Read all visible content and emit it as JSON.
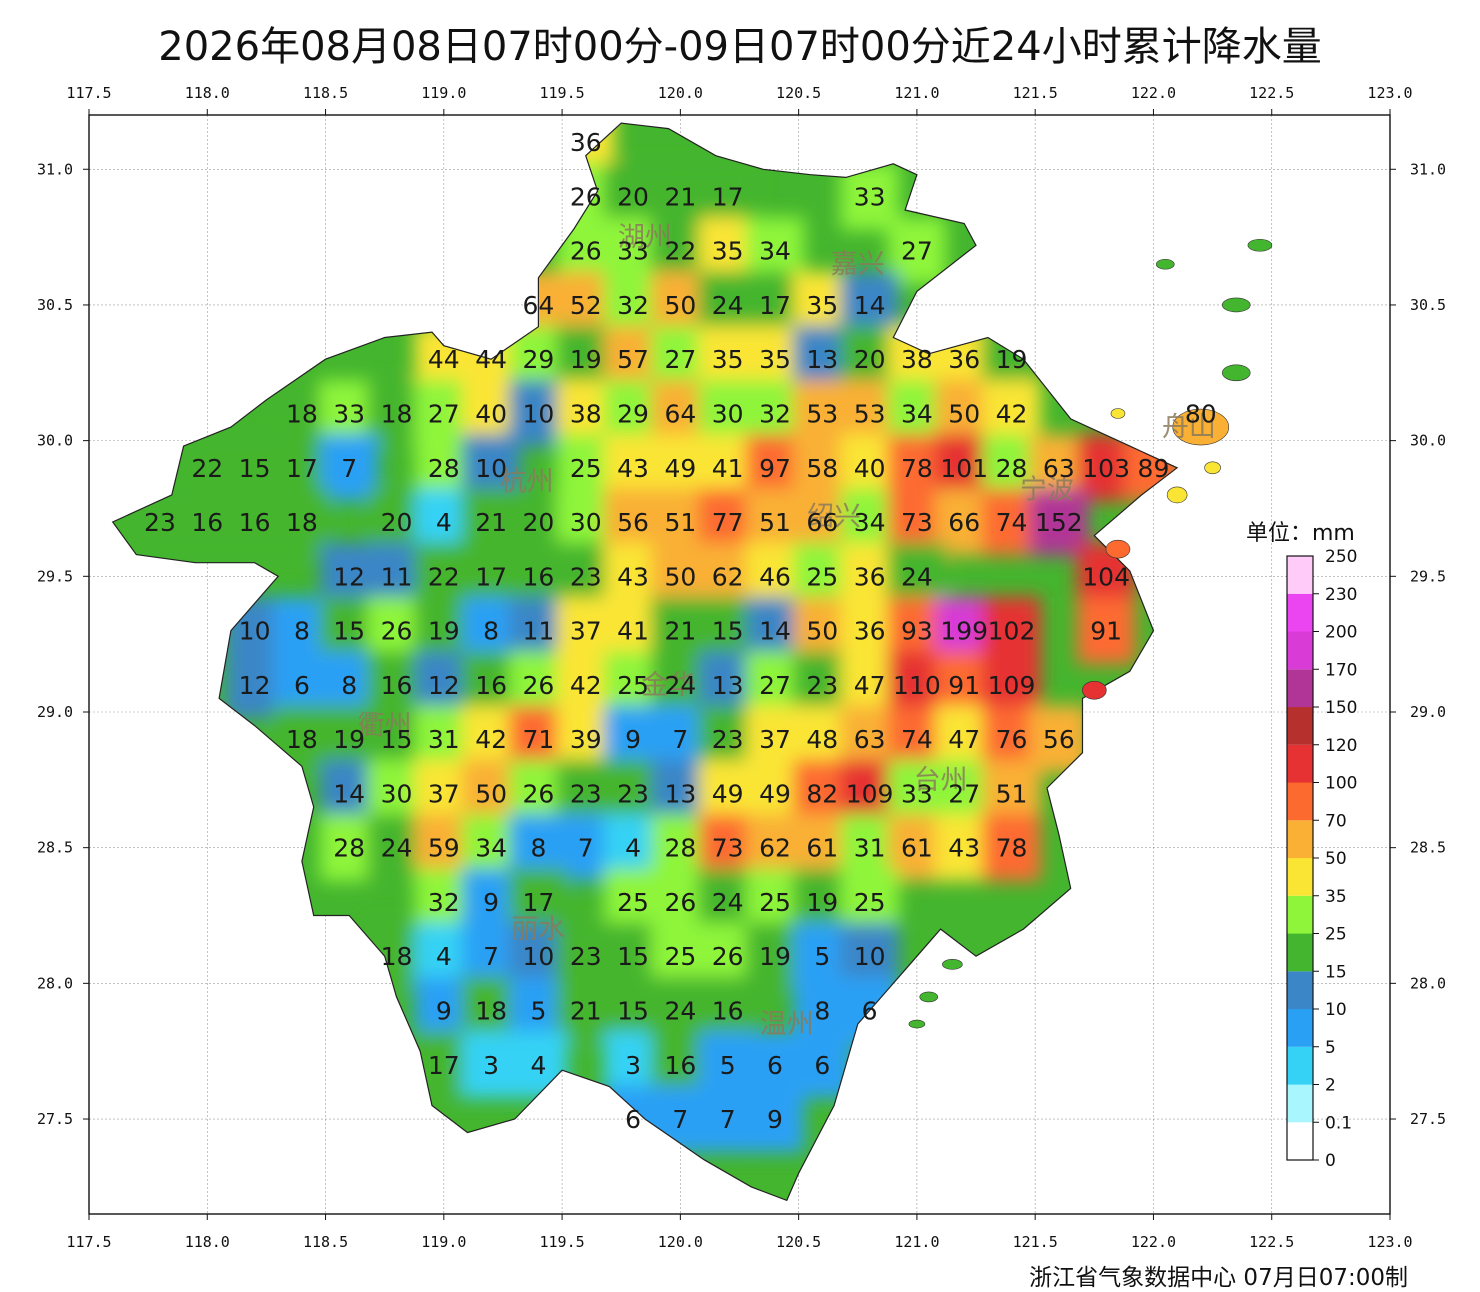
{
  "title": "2026年08月08日07时00分-09日07时00分近24小时累计降水量",
  "source": "浙江省气象数据中心 07月日07:00制",
  "unit_label": "单位：mm",
  "lon_ticks": [
    "117.5",
    "118.0",
    "118.5",
    "119.0",
    "119.5",
    "120.0",
    "120.5",
    "121.0",
    "121.5",
    "122.0",
    "122.5",
    "123.0"
  ],
  "lat_ticks": [
    "31.0",
    "30.5",
    "30.0",
    "29.5",
    "29.0",
    "28.5",
    "28.0",
    "27.5"
  ],
  "extent": {
    "lon_min": 117.5,
    "lon_max": 123.0,
    "lat_min": 27.15,
    "lat_max": 31.2
  },
  "colorbar": [
    {
      "label": "0",
      "color": "#ffffff"
    },
    {
      "label": "0.1",
      "color": "#a9f6ff"
    },
    {
      "label": "2",
      "color": "#35d2f5"
    },
    {
      "label": "5",
      "color": "#2aa0f5"
    },
    {
      "label": "10",
      "color": "#3a86c6"
    },
    {
      "label": "15",
      "color": "#44b52e"
    },
    {
      "label": "25",
      "color": "#8ef53a"
    },
    {
      "label": "35",
      "color": "#fae534"
    },
    {
      "label": "50",
      "color": "#f9b034"
    },
    {
      "label": "70",
      "color": "#fd6a30"
    },
    {
      "label": "100",
      "color": "#e63232"
    },
    {
      "label": "120",
      "color": "#b6302e"
    },
    {
      "label": "150",
      "color": "#b13597"
    },
    {
      "label": "170",
      "color": "#d83bd6"
    },
    {
      "label": "200",
      "color": "#ea45f0"
    },
    {
      "label": "230",
      "color": "#ffccf9"
    }
  ],
  "colorbar_top": "250",
  "cities": [
    {
      "name": "湖州",
      "lon": 119.85,
      "lat": 30.75
    },
    {
      "name": "嘉兴",
      "lon": 120.75,
      "lat": 30.65
    },
    {
      "name": "杭州",
      "lon": 119.35,
      "lat": 29.85
    },
    {
      "name": "绍兴",
      "lon": 120.65,
      "lat": 29.72
    },
    {
      "name": "宁波",
      "lon": 121.55,
      "lat": 29.82
    },
    {
      "name": "舟山",
      "lon": 122.15,
      "lat": 30.05
    },
    {
      "name": "金华",
      "lon": 119.95,
      "lat": 29.1
    },
    {
      "name": "衢州",
      "lon": 118.75,
      "lat": 28.95
    },
    {
      "name": "台州",
      "lon": 121.1,
      "lat": 28.75
    },
    {
      "name": "丽水",
      "lon": 119.4,
      "lat": 28.2
    },
    {
      "name": "温州",
      "lon": 120.45,
      "lat": 27.85
    }
  ],
  "chart_data": {
    "type": "heatmap",
    "x_axis": "longitude",
    "y_axis": "latitude",
    "values_mm": [
      {
        "lon": 119.6,
        "lat": 31.1,
        "v": 36
      },
      {
        "lon": 119.6,
        "lat": 30.9,
        "v": 26
      },
      {
        "lon": 119.8,
        "lat": 30.9,
        "v": 20
      },
      {
        "lon": 120.0,
        "lat": 30.9,
        "v": 21
      },
      {
        "lon": 120.2,
        "lat": 30.9,
        "v": 17
      },
      {
        "lon": 120.8,
        "lat": 30.9,
        "v": 33
      },
      {
        "lon": 119.6,
        "lat": 30.7,
        "v": 26
      },
      {
        "lon": 119.8,
        "lat": 30.7,
        "v": 33
      },
      {
        "lon": 120.0,
        "lat": 30.7,
        "v": 22
      },
      {
        "lon": 120.2,
        "lat": 30.7,
        "v": 35
      },
      {
        "lon": 120.4,
        "lat": 30.7,
        "v": 34
      },
      {
        "lon": 121.0,
        "lat": 30.7,
        "v": 27
      },
      {
        "lon": 119.4,
        "lat": 30.5,
        "v": 64
      },
      {
        "lon": 119.6,
        "lat": 30.5,
        "v": 52
      },
      {
        "lon": 119.8,
        "lat": 30.5,
        "v": 32
      },
      {
        "lon": 120.0,
        "lat": 30.5,
        "v": 50
      },
      {
        "lon": 120.2,
        "lat": 30.5,
        "v": 24
      },
      {
        "lon": 120.4,
        "lat": 30.5,
        "v": 17
      },
      {
        "lon": 120.6,
        "lat": 30.5,
        "v": 35
      },
      {
        "lon": 120.8,
        "lat": 30.5,
        "v": 14
      },
      {
        "lon": 119.0,
        "lat": 30.3,
        "v": 44
      },
      {
        "lon": 119.2,
        "lat": 30.3,
        "v": 44
      },
      {
        "lon": 119.4,
        "lat": 30.3,
        "v": 29
      },
      {
        "lon": 119.6,
        "lat": 30.3,
        "v": 19
      },
      {
        "lon": 119.8,
        "lat": 30.3,
        "v": 57
      },
      {
        "lon": 120.0,
        "lat": 30.3,
        "v": 27
      },
      {
        "lon": 120.2,
        "lat": 30.3,
        "v": 35
      },
      {
        "lon": 120.4,
        "lat": 30.3,
        "v": 35
      },
      {
        "lon": 120.6,
        "lat": 30.3,
        "v": 13
      },
      {
        "lon": 120.8,
        "lat": 30.3,
        "v": 20
      },
      {
        "lon": 121.0,
        "lat": 30.3,
        "v": 38
      },
      {
        "lon": 121.2,
        "lat": 30.3,
        "v": 36
      },
      {
        "lon": 121.4,
        "lat": 30.3,
        "v": 19
      },
      {
        "lon": 118.4,
        "lat": 30.1,
        "v": 18
      },
      {
        "lon": 118.6,
        "lat": 30.1,
        "v": 33
      },
      {
        "lon": 118.8,
        "lat": 30.1,
        "v": 18
      },
      {
        "lon": 119.0,
        "lat": 30.1,
        "v": 27
      },
      {
        "lon": 119.2,
        "lat": 30.1,
        "v": 40
      },
      {
        "lon": 119.4,
        "lat": 30.1,
        "v": 10
      },
      {
        "lon": 119.6,
        "lat": 30.1,
        "v": 38
      },
      {
        "lon": 119.8,
        "lat": 30.1,
        "v": 29
      },
      {
        "lon": 120.0,
        "lat": 30.1,
        "v": 64
      },
      {
        "lon": 120.2,
        "lat": 30.1,
        "v": 30
      },
      {
        "lon": 120.4,
        "lat": 30.1,
        "v": 32
      },
      {
        "lon": 120.6,
        "lat": 30.1,
        "v": 53
      },
      {
        "lon": 120.8,
        "lat": 30.1,
        "v": 53
      },
      {
        "lon": 121.0,
        "lat": 30.1,
        "v": 34
      },
      {
        "lon": 121.2,
        "lat": 30.1,
        "v": 50
      },
      {
        "lon": 121.4,
        "lat": 30.1,
        "v": 42
      },
      {
        "lon": 122.2,
        "lat": 30.1,
        "v": 80
      },
      {
        "lon": 118.0,
        "lat": 29.9,
        "v": 22
      },
      {
        "lon": 118.2,
        "lat": 29.9,
        "v": 15
      },
      {
        "lon": 118.4,
        "lat": 29.9,
        "v": 17
      },
      {
        "lon": 118.6,
        "lat": 29.9,
        "v": 7
      },
      {
        "lon": 119.0,
        "lat": 29.9,
        "v": 28
      },
      {
        "lon": 119.2,
        "lat": 29.9,
        "v": 10
      },
      {
        "lon": 119.6,
        "lat": 29.9,
        "v": 25
      },
      {
        "lon": 119.8,
        "lat": 29.9,
        "v": 43
      },
      {
        "lon": 120.0,
        "lat": 29.9,
        "v": 49
      },
      {
        "lon": 120.2,
        "lat": 29.9,
        "v": 41
      },
      {
        "lon": 120.4,
        "lat": 29.9,
        "v": 97
      },
      {
        "lon": 120.6,
        "lat": 29.9,
        "v": 58
      },
      {
        "lon": 120.8,
        "lat": 29.9,
        "v": 40
      },
      {
        "lon": 121.0,
        "lat": 29.9,
        "v": 78
      },
      {
        "lon": 121.2,
        "lat": 29.9,
        "v": 101
      },
      {
        "lon": 121.4,
        "lat": 29.9,
        "v": 28
      },
      {
        "lon": 121.6,
        "lat": 29.9,
        "v": 63
      },
      {
        "lon": 121.8,
        "lat": 29.9,
        "v": 103
      },
      {
        "lon": 122.0,
        "lat": 29.9,
        "v": 89
      },
      {
        "lon": 117.8,
        "lat": 29.7,
        "v": 23
      },
      {
        "lon": 118.0,
        "lat": 29.7,
        "v": 16
      },
      {
        "lon": 118.2,
        "lat": 29.7,
        "v": 16
      },
      {
        "lon": 118.4,
        "lat": 29.7,
        "v": 18
      },
      {
        "lon": 118.8,
        "lat": 29.7,
        "v": 20
      },
      {
        "lon": 119.0,
        "lat": 29.7,
        "v": 4
      },
      {
        "lon": 119.2,
        "lat": 29.7,
        "v": 21
      },
      {
        "lon": 119.4,
        "lat": 29.7,
        "v": 20
      },
      {
        "lon": 119.6,
        "lat": 29.7,
        "v": 30
      },
      {
        "lon": 119.8,
        "lat": 29.7,
        "v": 56
      },
      {
        "lon": 120.0,
        "lat": 29.7,
        "v": 51
      },
      {
        "lon": 120.2,
        "lat": 29.7,
        "v": 77
      },
      {
        "lon": 120.4,
        "lat": 29.7,
        "v": 51
      },
      {
        "lon": 120.6,
        "lat": 29.7,
        "v": 66
      },
      {
        "lon": 120.8,
        "lat": 29.7,
        "v": 34
      },
      {
        "lon": 121.0,
        "lat": 29.7,
        "v": 73
      },
      {
        "lon": 121.2,
        "lat": 29.7,
        "v": 66
      },
      {
        "lon": 121.4,
        "lat": 29.7,
        "v": 74
      },
      {
        "lon": 121.6,
        "lat": 29.7,
        "v": 152
      },
      {
        "lon": 118.6,
        "lat": 29.5,
        "v": 12
      },
      {
        "lon": 118.8,
        "lat": 29.5,
        "v": 11
      },
      {
        "lon": 119.0,
        "lat": 29.5,
        "v": 22
      },
      {
        "lon": 119.2,
        "lat": 29.5,
        "v": 17
      },
      {
        "lon": 119.4,
        "lat": 29.5,
        "v": 16
      },
      {
        "lon": 119.6,
        "lat": 29.5,
        "v": 23
      },
      {
        "lon": 119.8,
        "lat": 29.5,
        "v": 43
      },
      {
        "lon": 120.0,
        "lat": 29.5,
        "v": 50
      },
      {
        "lon": 120.2,
        "lat": 29.5,
        "v": 62
      },
      {
        "lon": 120.4,
        "lat": 29.5,
        "v": 46
      },
      {
        "lon": 120.6,
        "lat": 29.5,
        "v": 25
      },
      {
        "lon": 120.8,
        "lat": 29.5,
        "v": 36
      },
      {
        "lon": 121.0,
        "lat": 29.5,
        "v": 24
      },
      {
        "lon": 121.8,
        "lat": 29.5,
        "v": 104
      },
      {
        "lon": 118.2,
        "lat": 29.3,
        "v": 10
      },
      {
        "lon": 118.4,
        "lat": 29.3,
        "v": 8
      },
      {
        "lon": 118.6,
        "lat": 29.3,
        "v": 15
      },
      {
        "lon": 118.8,
        "lat": 29.3,
        "v": 26
      },
      {
        "lon": 119.0,
        "lat": 29.3,
        "v": 19
      },
      {
        "lon": 119.2,
        "lat": 29.3,
        "v": 8
      },
      {
        "lon": 119.4,
        "lat": 29.3,
        "v": 11
      },
      {
        "lon": 119.6,
        "lat": 29.3,
        "v": 37
      },
      {
        "lon": 119.8,
        "lat": 29.3,
        "v": 41
      },
      {
        "lon": 120.0,
        "lat": 29.3,
        "v": 21
      },
      {
        "lon": 120.2,
        "lat": 29.3,
        "v": 15
      },
      {
        "lon": 120.4,
        "lat": 29.3,
        "v": 14
      },
      {
        "lon": 120.6,
        "lat": 29.3,
        "v": 50
      },
      {
        "lon": 120.8,
        "lat": 29.3,
        "v": 36
      },
      {
        "lon": 121.0,
        "lat": 29.3,
        "v": 93
      },
      {
        "lon": 121.2,
        "lat": 29.3,
        "v": 199
      },
      {
        "lon": 121.4,
        "lat": 29.3,
        "v": 102
      },
      {
        "lon": 121.8,
        "lat": 29.3,
        "v": 91
      },
      {
        "lon": 118.2,
        "lat": 29.1,
        "v": 12
      },
      {
        "lon": 118.4,
        "lat": 29.1,
        "v": 6
      },
      {
        "lon": 118.6,
        "lat": 29.1,
        "v": 8
      },
      {
        "lon": 118.8,
        "lat": 29.1,
        "v": 16
      },
      {
        "lon": 119.0,
        "lat": 29.1,
        "v": 12
      },
      {
        "lon": 119.2,
        "lat": 29.1,
        "v": 16
      },
      {
        "lon": 119.4,
        "lat": 29.1,
        "v": 26
      },
      {
        "lon": 119.6,
        "lat": 29.1,
        "v": 42
      },
      {
        "lon": 119.8,
        "lat": 29.1,
        "v": 25
      },
      {
        "lon": 120.0,
        "lat": 29.1,
        "v": 24
      },
      {
        "lon": 120.2,
        "lat": 29.1,
        "v": 13
      },
      {
        "lon": 120.4,
        "lat": 29.1,
        "v": 27
      },
      {
        "lon": 120.6,
        "lat": 29.1,
        "v": 23
      },
      {
        "lon": 120.8,
        "lat": 29.1,
        "v": 47
      },
      {
        "lon": 121.0,
        "lat": 29.1,
        "v": 110
      },
      {
        "lon": 121.2,
        "lat": 29.1,
        "v": 91
      },
      {
        "lon": 121.4,
        "lat": 29.1,
        "v": 109
      },
      {
        "lon": 118.4,
        "lat": 28.9,
        "v": 18
      },
      {
        "lon": 118.6,
        "lat": 28.9,
        "v": 19
      },
      {
        "lon": 118.8,
        "lat": 28.9,
        "v": 15
      },
      {
        "lon": 119.0,
        "lat": 28.9,
        "v": 31
      },
      {
        "lon": 119.2,
        "lat": 28.9,
        "v": 42
      },
      {
        "lon": 119.4,
        "lat": 28.9,
        "v": 71
      },
      {
        "lon": 119.6,
        "lat": 28.9,
        "v": 39
      },
      {
        "lon": 119.8,
        "lat": 28.9,
        "v": 9
      },
      {
        "lon": 120.0,
        "lat": 28.9,
        "v": 7
      },
      {
        "lon": 120.2,
        "lat": 28.9,
        "v": 23
      },
      {
        "lon": 120.4,
        "lat": 28.9,
        "v": 37
      },
      {
        "lon": 120.6,
        "lat": 28.9,
        "v": 48
      },
      {
        "lon": 120.8,
        "lat": 28.9,
        "v": 63
      },
      {
        "lon": 121.0,
        "lat": 28.9,
        "v": 74
      },
      {
        "lon": 121.2,
        "lat": 28.9,
        "v": 47
      },
      {
        "lon": 121.4,
        "lat": 28.9,
        "v": 76
      },
      {
        "lon": 121.6,
        "lat": 28.9,
        "v": 56
      },
      {
        "lon": 118.6,
        "lat": 28.7,
        "v": 14
      },
      {
        "lon": 118.8,
        "lat": 28.7,
        "v": 30
      },
      {
        "lon": 119.0,
        "lat": 28.7,
        "v": 37
      },
      {
        "lon": 119.2,
        "lat": 28.7,
        "v": 50
      },
      {
        "lon": 119.4,
        "lat": 28.7,
        "v": 26
      },
      {
        "lon": 119.6,
        "lat": 28.7,
        "v": 23
      },
      {
        "lon": 119.8,
        "lat": 28.7,
        "v": 23
      },
      {
        "lon": 120.0,
        "lat": 28.7,
        "v": 13
      },
      {
        "lon": 120.2,
        "lat": 28.7,
        "v": 49
      },
      {
        "lon": 120.4,
        "lat": 28.7,
        "v": 49
      },
      {
        "lon": 120.6,
        "lat": 28.7,
        "v": 82
      },
      {
        "lon": 120.8,
        "lat": 28.7,
        "v": 109
      },
      {
        "lon": 121.0,
        "lat": 28.7,
        "v": 33
      },
      {
        "lon": 121.2,
        "lat": 28.7,
        "v": 27
      },
      {
        "lon": 121.4,
        "lat": 28.7,
        "v": 51
      },
      {
        "lon": 118.6,
        "lat": 28.5,
        "v": 28
      },
      {
        "lon": 118.8,
        "lat": 28.5,
        "v": 24
      },
      {
        "lon": 119.0,
        "lat": 28.5,
        "v": 59
      },
      {
        "lon": 119.2,
        "lat": 28.5,
        "v": 34
      },
      {
        "lon": 119.4,
        "lat": 28.5,
        "v": 8
      },
      {
        "lon": 119.6,
        "lat": 28.5,
        "v": 7
      },
      {
        "lon": 119.8,
        "lat": 28.5,
        "v": 4
      },
      {
        "lon": 120.0,
        "lat": 28.5,
        "v": 28
      },
      {
        "lon": 120.2,
        "lat": 28.5,
        "v": 73
      },
      {
        "lon": 120.4,
        "lat": 28.5,
        "v": 62
      },
      {
        "lon": 120.6,
        "lat": 28.5,
        "v": 61
      },
      {
        "lon": 120.8,
        "lat": 28.5,
        "v": 31
      },
      {
        "lon": 121.0,
        "lat": 28.5,
        "v": 61
      },
      {
        "lon": 121.2,
        "lat": 28.5,
        "v": 43
      },
      {
        "lon": 121.4,
        "lat": 28.5,
        "v": 78
      },
      {
        "lon": 119.0,
        "lat": 28.3,
        "v": 32
      },
      {
        "lon": 119.2,
        "lat": 28.3,
        "v": 9
      },
      {
        "lon": 119.4,
        "lat": 28.3,
        "v": 17
      },
      {
        "lon": 119.8,
        "lat": 28.3,
        "v": 25
      },
      {
        "lon": 120.0,
        "lat": 28.3,
        "v": 26
      },
      {
        "lon": 120.2,
        "lat": 28.3,
        "v": 24
      },
      {
        "lon": 120.4,
        "lat": 28.3,
        "v": 25
      },
      {
        "lon": 120.6,
        "lat": 28.3,
        "v": 19
      },
      {
        "lon": 120.8,
        "lat": 28.3,
        "v": 25
      },
      {
        "lon": 118.8,
        "lat": 28.1,
        "v": 18
      },
      {
        "lon": 119.0,
        "lat": 28.1,
        "v": 4
      },
      {
        "lon": 119.2,
        "lat": 28.1,
        "v": 7
      },
      {
        "lon": 119.4,
        "lat": 28.1,
        "v": 10
      },
      {
        "lon": 119.6,
        "lat": 28.1,
        "v": 23
      },
      {
        "lon": 119.8,
        "lat": 28.1,
        "v": 15
      },
      {
        "lon": 120.0,
        "lat": 28.1,
        "v": 25
      },
      {
        "lon": 120.2,
        "lat": 28.1,
        "v": 26
      },
      {
        "lon": 120.4,
        "lat": 28.1,
        "v": 19
      },
      {
        "lon": 120.6,
        "lat": 28.1,
        "v": 5
      },
      {
        "lon": 120.8,
        "lat": 28.1,
        "v": 10
      },
      {
        "lon": 119.0,
        "lat": 27.9,
        "v": 9
      },
      {
        "lon": 119.2,
        "lat": 27.9,
        "v": 18
      },
      {
        "lon": 119.4,
        "lat": 27.9,
        "v": 5
      },
      {
        "lon": 119.6,
        "lat": 27.9,
        "v": 21
      },
      {
        "lon": 119.8,
        "lat": 27.9,
        "v": 15
      },
      {
        "lon": 120.0,
        "lat": 27.9,
        "v": 24
      },
      {
        "lon": 120.2,
        "lat": 27.9,
        "v": 16
      },
      {
        "lon": 120.6,
        "lat": 27.9,
        "v": 8
      },
      {
        "lon": 120.8,
        "lat": 27.9,
        "v": 6
      },
      {
        "lon": 119.0,
        "lat": 27.7,
        "v": 17
      },
      {
        "lon": 119.2,
        "lat": 27.7,
        "v": 3
      },
      {
        "lon": 119.4,
        "lat": 27.7,
        "v": 4
      },
      {
        "lon": 119.8,
        "lat": 27.7,
        "v": 3
      },
      {
        "lon": 120.0,
        "lat": 27.7,
        "v": 16
      },
      {
        "lon": 120.2,
        "lat": 27.7,
        "v": 5
      },
      {
        "lon": 120.4,
        "lat": 27.7,
        "v": 6
      },
      {
        "lon": 120.6,
        "lat": 27.7,
        "v": 6
      },
      {
        "lon": 119.8,
        "lat": 27.5,
        "v": 6
      },
      {
        "lon": 120.0,
        "lat": 27.5,
        "v": 7
      },
      {
        "lon": 120.2,
        "lat": 27.5,
        "v": 7
      },
      {
        "lon": 120.4,
        "lat": 27.5,
        "v": 9
      }
    ]
  }
}
